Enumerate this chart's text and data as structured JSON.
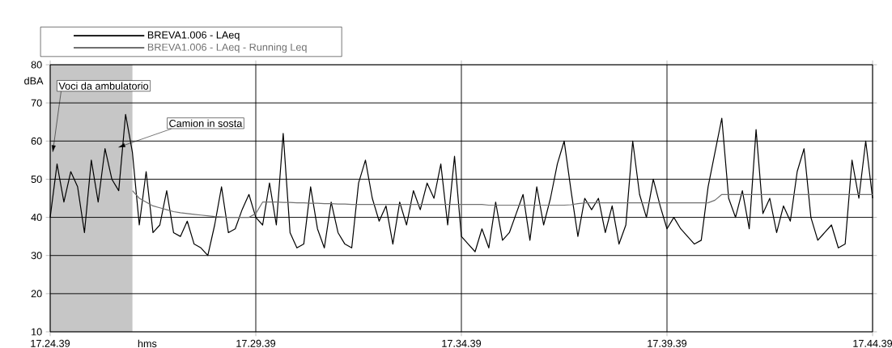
{
  "chart_data": {
    "type": "line",
    "xlabel": "hms",
    "ylabel": "dBA",
    "categories": [
      "17.24.39",
      null,
      null,
      null,
      null,
      null,
      null,
      null,
      null,
      null,
      null,
      null,
      null,
      null,
      null,
      null,
      null,
      null,
      null,
      null,
      null,
      null,
      null,
      null,
      null,
      null,
      null,
      null,
      null,
      null,
      "17.29.39",
      null,
      null,
      null,
      null,
      null,
      null,
      null,
      null,
      null,
      null,
      null,
      null,
      null,
      null,
      null,
      null,
      null,
      null,
      null,
      null,
      null,
      null,
      null,
      null,
      null,
      null,
      null,
      null,
      null,
      "17.34.39",
      null,
      null,
      null,
      null,
      null,
      null,
      null,
      null,
      null,
      null,
      null,
      null,
      null,
      null,
      null,
      null,
      null,
      null,
      null,
      null,
      null,
      null,
      null,
      null,
      null,
      null,
      null,
      null,
      null,
      "17.39.39",
      null,
      null,
      null,
      null,
      null,
      null,
      null,
      null,
      null,
      null,
      null,
      null,
      null,
      null,
      null,
      null,
      null,
      null,
      null,
      null,
      null,
      null,
      null,
      null,
      null,
      null,
      null,
      null,
      null,
      "17.44.39"
    ],
    "series": [
      {
        "name": "BREVA1.006 - LAeq",
        "color": "#000000",
        "values": [
          40,
          54,
          44,
          52,
          48,
          36,
          55,
          44,
          58,
          50,
          47,
          67,
          57,
          38,
          52,
          36,
          38,
          47,
          36,
          35,
          39,
          33,
          32,
          30,
          38,
          48,
          36,
          37,
          42,
          46,
          40,
          38,
          49,
          38,
          62,
          36,
          32,
          33,
          48,
          37,
          32,
          44,
          36,
          33,
          32,
          49,
          55,
          45,
          39,
          43,
          33,
          44,
          38,
          47,
          42,
          49,
          45,
          54,
          38,
          56,
          35,
          33,
          31,
          37,
          32,
          44,
          34,
          36,
          41,
          46,
          34,
          48,
          38,
          45,
          54,
          60,
          47,
          35,
          45,
          42,
          45,
          36,
          43,
          33,
          38,
          60,
          46,
          40,
          50,
          43,
          37,
          40,
          37,
          35,
          33,
          34,
          48,
          57,
          66,
          45,
          40,
          47,
          37,
          63,
          41,
          45,
          36,
          43,
          39,
          52,
          58,
          40,
          34,
          36,
          38,
          32,
          33,
          55,
          45,
          60,
          45
        ]
      },
      {
        "name": "BREVA1.006 - LAeq - Running Leq",
        "color": "#707070",
        "values": [
          null,
          null,
          null,
          null,
          null,
          null,
          null,
          null,
          null,
          null,
          null,
          null,
          47,
          45,
          44,
          43,
          42.5,
          42,
          41.5,
          41.2,
          41,
          40.8,
          40.6,
          40.4,
          40.2,
          40.1,
          40,
          40,
          40,
          40,
          41,
          44,
          44,
          44,
          43.9,
          43.9,
          43.8,
          43.8,
          43.7,
          43.7,
          43.6,
          43.6,
          43.5,
          43.5,
          43.4,
          43.4,
          43.4,
          43.4,
          43.4,
          43.4,
          43.4,
          43.4,
          43.4,
          43.4,
          43.4,
          43.4,
          43.4,
          43.4,
          43.4,
          43.4,
          43.4,
          43.4,
          43.4,
          43.4,
          43.2,
          43.2,
          43.2,
          43.2,
          43.2,
          43.2,
          43.2,
          43.2,
          43.2,
          43.2,
          43.2,
          43.2,
          43.3,
          43.6,
          43.8,
          43.8,
          43.8,
          43.8,
          43.8,
          43.8,
          43.8,
          43.8,
          43.8,
          43.8,
          43.8,
          43.8,
          43.8,
          43.8,
          43.8,
          43.8,
          43.8,
          43.8,
          43.8,
          44.5,
          46,
          46,
          46,
          46,
          46,
          46,
          46,
          46,
          46,
          46,
          46,
          46,
          46,
          46,
          46,
          46,
          46,
          46,
          46,
          46,
          46,
          46,
          46
        ]
      }
    ],
    "ylim": [
      10,
      80
    ],
    "yticks": [
      10,
      20,
      30,
      40,
      50,
      60,
      70,
      80
    ],
    "grid": true,
    "legend": "top",
    "annotations": [
      "Voci da ambulatorio",
      "Camion in sosta"
    ]
  }
}
